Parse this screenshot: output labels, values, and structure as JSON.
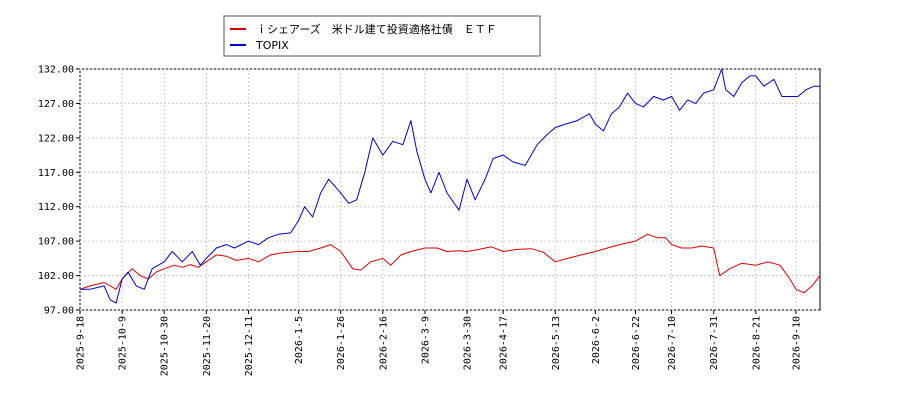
{
  "chart_data": {
    "type": "line",
    "title": "",
    "xlabel": "",
    "ylabel": "",
    "ylim": [
      97.0,
      132.0
    ],
    "yticks": [
      "97.00",
      "102.00",
      "107.00",
      "112.00",
      "117.00",
      "122.00",
      "127.00",
      "132.00"
    ],
    "xticks": [
      "2025-9-18",
      "2025-10-9",
      "2025-10-30",
      "2025-11-20",
      "2025-12-11",
      "2026-1-5",
      "2026-1-26",
      "2026-2-16",
      "2026-3-9",
      "2026-3-30",
      "2026-4-17",
      "2026-5-13",
      "2026-6-2",
      "2026-6-22",
      "2026-7-10",
      "2026-7-31",
      "2026-8-21",
      "2026-9-10"
    ],
    "grid": true,
    "legend_position": "top",
    "series": [
      {
        "name": "ｉシェアーズ　米ドル建て投資適格社債　ＥＴＦ",
        "color": "#dd0000",
        "points": [
          [
            "2025-9-18",
            100.0
          ],
          [
            "2025-9-23",
            100.5
          ],
          [
            "2025-9-30",
            101.0
          ],
          [
            "2025-10-6",
            100.0
          ],
          [
            "2025-10-9",
            101.5
          ],
          [
            "2025-10-14",
            103.0
          ],
          [
            "2025-10-18",
            102.0
          ],
          [
            "2025-10-22",
            101.5
          ],
          [
            "2025-10-26",
            102.5
          ],
          [
            "2025-10-30",
            103.0
          ],
          [
            "2025-11-4",
            103.5
          ],
          [
            "2025-11-8",
            103.2
          ],
          [
            "2025-11-12",
            103.6
          ],
          [
            "2025-11-16",
            103.2
          ],
          [
            "2025-11-20",
            104.0
          ],
          [
            "2025-11-25",
            105.0
          ],
          [
            "2025-11-30",
            104.8
          ],
          [
            "2025-12-5",
            104.2
          ],
          [
            "2025-12-11",
            104.5
          ],
          [
            "2025-12-16",
            104.0
          ],
          [
            "2025-12-22",
            105.0
          ],
          [
            "2025-12-28",
            105.3
          ],
          [
            "2026-1-5",
            105.5
          ],
          [
            "2026-1-10",
            105.5
          ],
          [
            "2026-1-16",
            106.0
          ],
          [
            "2026-1-21",
            106.5
          ],
          [
            "2026-1-26",
            105.5
          ],
          [
            "2026-2-1",
            103.0
          ],
          [
            "2026-2-5",
            102.8
          ],
          [
            "2026-2-10",
            104.0
          ],
          [
            "2026-2-16",
            104.5
          ],
          [
            "2026-2-20",
            103.5
          ],
          [
            "2026-2-25",
            105.0
          ],
          [
            "2026-3-2",
            105.5
          ],
          [
            "2026-3-9",
            106.0
          ],
          [
            "2026-3-15",
            106.0
          ],
          [
            "2026-3-20",
            105.5
          ],
          [
            "2026-3-26",
            105.6
          ],
          [
            "2026-3-30",
            105.5
          ],
          [
            "2026-4-5",
            105.8
          ],
          [
            "2026-4-11",
            106.2
          ],
          [
            "2026-4-17",
            105.5
          ],
          [
            "2026-4-24",
            105.8
          ],
          [
            "2026-5-1",
            105.9
          ],
          [
            "2026-5-7",
            105.4
          ],
          [
            "2026-5-13",
            104.0
          ],
          [
            "2026-5-19",
            104.5
          ],
          [
            "2026-5-26",
            105.0
          ],
          [
            "2026-6-2",
            105.5
          ],
          [
            "2026-6-8",
            106.0
          ],
          [
            "2026-6-14",
            106.5
          ],
          [
            "2026-6-22",
            107.0
          ],
          [
            "2026-6-28",
            108.0
          ],
          [
            "2026-7-3",
            107.5
          ],
          [
            "2026-7-7",
            107.5
          ],
          [
            "2026-7-10",
            106.5
          ],
          [
            "2026-7-15",
            106.0
          ],
          [
            "2026-7-20",
            106.0
          ],
          [
            "2026-7-25",
            106.3
          ],
          [
            "2026-7-31",
            106.0
          ],
          [
            "2026-8-3",
            102.0
          ],
          [
            "2026-8-8",
            103.0
          ],
          [
            "2026-8-14",
            103.8
          ],
          [
            "2026-8-21",
            103.5
          ],
          [
            "2026-8-27",
            104.0
          ],
          [
            "2026-9-2",
            103.5
          ],
          [
            "2026-9-7",
            101.5
          ],
          [
            "2026-9-10",
            100.0
          ],
          [
            "2026-9-14",
            99.5
          ],
          [
            "2026-9-18",
            100.5
          ],
          [
            "2026-9-22",
            102.0
          ]
        ]
      },
      {
        "name": "TOPIX",
        "color": "#0000cc",
        "points": [
          [
            "2025-9-18",
            100.0
          ],
          [
            "2025-9-23",
            100.0
          ],
          [
            "2025-9-30",
            100.5
          ],
          [
            "2025-10-3",
            98.5
          ],
          [
            "2025-10-6",
            98.0
          ],
          [
            "2025-10-9",
            101.5
          ],
          [
            "2025-10-12",
            102.5
          ],
          [
            "2025-10-16",
            100.5
          ],
          [
            "2025-10-20",
            100.0
          ],
          [
            "2025-10-24",
            103.0
          ],
          [
            "2025-10-30",
            104.0
          ],
          [
            "2025-11-3",
            105.5
          ],
          [
            "2025-11-8",
            104.0
          ],
          [
            "2025-11-13",
            105.5
          ],
          [
            "2025-11-17",
            103.5
          ],
          [
            "2025-11-20",
            104.5
          ],
          [
            "2025-11-25",
            106.0
          ],
          [
            "2025-11-30",
            106.5
          ],
          [
            "2025-12-4",
            106.0
          ],
          [
            "2025-12-11",
            107.0
          ],
          [
            "2025-12-16",
            106.5
          ],
          [
            "2025-12-21",
            107.5
          ],
          [
            "2025-12-26",
            108.0
          ],
          [
            "2026-1-1",
            108.2
          ],
          [
            "2026-1-5",
            110.0
          ],
          [
            "2026-1-8",
            112.0
          ],
          [
            "2026-1-12",
            110.5
          ],
          [
            "2026-1-16",
            114.0
          ],
          [
            "2026-1-20",
            116.0
          ],
          [
            "2026-1-26",
            114.0
          ],
          [
            "2026-1-30",
            112.5
          ],
          [
            "2026-2-3",
            113.0
          ],
          [
            "2026-2-7",
            117.0
          ],
          [
            "2026-2-11",
            122.0
          ],
          [
            "2026-2-16",
            119.5
          ],
          [
            "2026-2-21",
            121.5
          ],
          [
            "2026-2-26",
            121.0
          ],
          [
            "2026-3-2",
            124.5
          ],
          [
            "2026-3-5",
            120.0
          ],
          [
            "2026-3-9",
            116.0
          ],
          [
            "2026-3-12",
            114.0
          ],
          [
            "2026-3-16",
            117.0
          ],
          [
            "2026-3-20",
            114.0
          ],
          [
            "2026-3-26",
            111.5
          ],
          [
            "2026-3-30",
            116.0
          ],
          [
            "2026-4-3",
            113.0
          ],
          [
            "2026-4-8",
            116.0
          ],
          [
            "2026-4-12",
            119.0
          ],
          [
            "2026-4-17",
            119.5
          ],
          [
            "2026-4-22",
            118.5
          ],
          [
            "2026-4-28",
            118.0
          ],
          [
            "2026-5-4",
            121.0
          ],
          [
            "2026-5-9",
            122.5
          ],
          [
            "2026-5-13",
            123.5
          ],
          [
            "2026-5-18",
            124.0
          ],
          [
            "2026-5-24",
            124.5
          ],
          [
            "2026-5-30",
            125.5
          ],
          [
            "2026-6-2",
            124.0
          ],
          [
            "2026-6-6",
            123.0
          ],
          [
            "2026-6-10",
            125.5
          ],
          [
            "2026-6-14",
            126.5
          ],
          [
            "2026-6-18",
            128.5
          ],
          [
            "2026-6-22",
            127.0
          ],
          [
            "2026-6-26",
            126.5
          ],
          [
            "2026-7-1",
            128.0
          ],
          [
            "2026-7-6",
            127.5
          ],
          [
            "2026-7-10",
            128.0
          ],
          [
            "2026-7-14",
            126.0
          ],
          [
            "2026-7-18",
            127.5
          ],
          [
            "2026-7-22",
            127.0
          ],
          [
            "2026-7-26",
            128.5
          ],
          [
            "2026-7-31",
            129.0
          ],
          [
            "2026-8-4",
            132.0
          ],
          [
            "2026-8-6",
            129.0
          ],
          [
            "2026-8-10",
            128.0
          ],
          [
            "2026-8-14",
            130.0
          ],
          [
            "2026-8-18",
            131.0
          ],
          [
            "2026-8-21",
            131.0
          ],
          [
            "2026-8-25",
            129.5
          ],
          [
            "2026-8-30",
            130.5
          ],
          [
            "2026-9-3",
            128.0
          ],
          [
            "2026-9-7",
            128.0
          ],
          [
            "2026-9-11",
            128.0
          ],
          [
            "2026-9-15",
            129.0
          ],
          [
            "2026-9-19",
            129.5
          ],
          [
            "2026-9-22",
            129.5
          ]
        ]
      }
    ]
  }
}
